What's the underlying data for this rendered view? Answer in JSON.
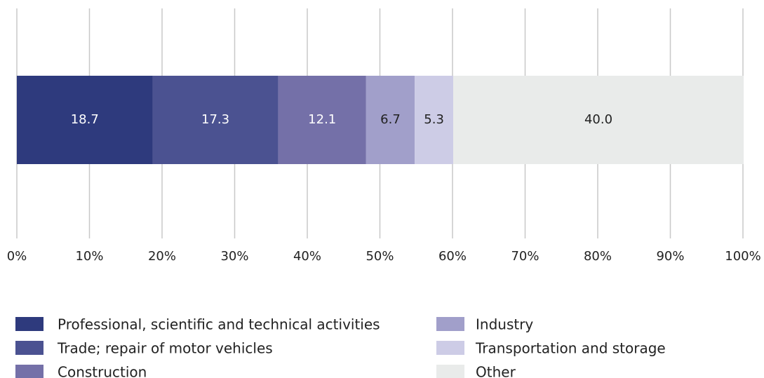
{
  "chart_data": {
    "type": "stacked_bar_horizontal",
    "series": [
      {
        "name": "Professional, scientific and technical activities",
        "color": "#2e3a7d",
        "values": [
          18.7
        ],
        "value_labels": [
          "18.7"
        ]
      },
      {
        "name": "Trade; repair of motor vehicles",
        "color": "#4b5291",
        "values": [
          17.3
        ],
        "value_labels": [
          "17.3"
        ]
      },
      {
        "name": "Construction",
        "color": "#7470a8",
        "values": [
          12.1
        ],
        "value_labels": [
          "12.1"
        ]
      },
      {
        "name": "Industry",
        "color": "#a19fca",
        "values": [
          6.7
        ],
        "value_labels": [
          "6.7"
        ]
      },
      {
        "name": "Transportation and storage",
        "color": "#cdcce6",
        "values": [
          5.3
        ],
        "value_labels": [
          "5.3"
        ]
      },
      {
        "name": "Other",
        "color": "#e9ebea",
        "values": [
          40.0
        ],
        "value_labels": [
          "40.0"
        ]
      }
    ],
    "xlim": [
      0,
      100
    ],
    "xticks": [
      {
        "value": 0,
        "label": "0%"
      },
      {
        "value": 10,
        "label": "10%"
      },
      {
        "value": 20,
        "label": "20%"
      },
      {
        "value": 30,
        "label": "30%"
      },
      {
        "value": 40,
        "label": "40%"
      },
      {
        "value": 50,
        "label": "50%"
      },
      {
        "value": 60,
        "label": "60%"
      },
      {
        "value": 70,
        "label": "70%"
      },
      {
        "value": 80,
        "label": "80%"
      },
      {
        "value": 90,
        "label": "90%"
      },
      {
        "value": 100,
        "label": "100%"
      }
    ],
    "grid": true,
    "legend": "bottom"
  }
}
